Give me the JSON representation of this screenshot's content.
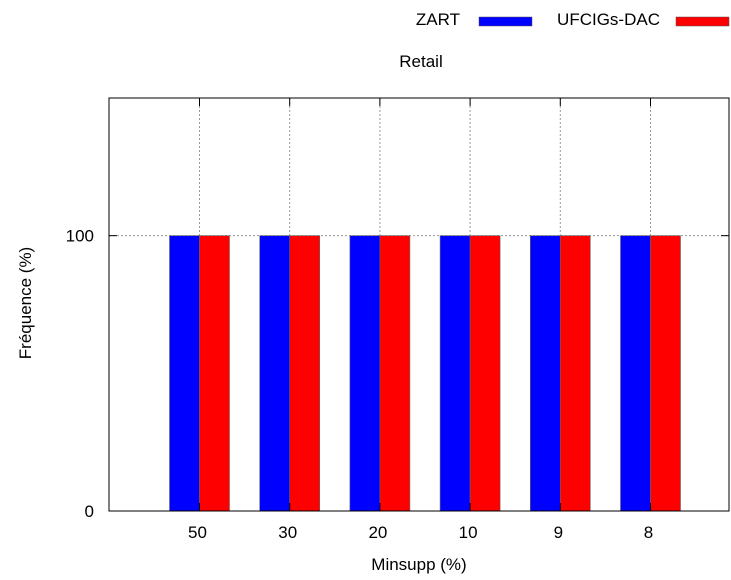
{
  "chart_data": {
    "type": "bar",
    "title": "Retail",
    "xlabel": "Minsupp (%)",
    "ylabel": "Fréquence (%)",
    "categories": [
      "50",
      "30",
      "20",
      "10",
      "9",
      "8"
    ],
    "series": [
      {
        "name": "ZART",
        "color": "#0000ff",
        "values": [
          100,
          100,
          100,
          100,
          100,
          100
        ]
      },
      {
        "name": "UFCIGs-DAC",
        "color": "#ff0000",
        "values": [
          100,
          100,
          100,
          100,
          100,
          100
        ]
      }
    ],
    "ylim": [
      0,
      150
    ],
    "yticks": [
      0,
      100
    ],
    "grid": true,
    "legend_position": "top-right"
  }
}
